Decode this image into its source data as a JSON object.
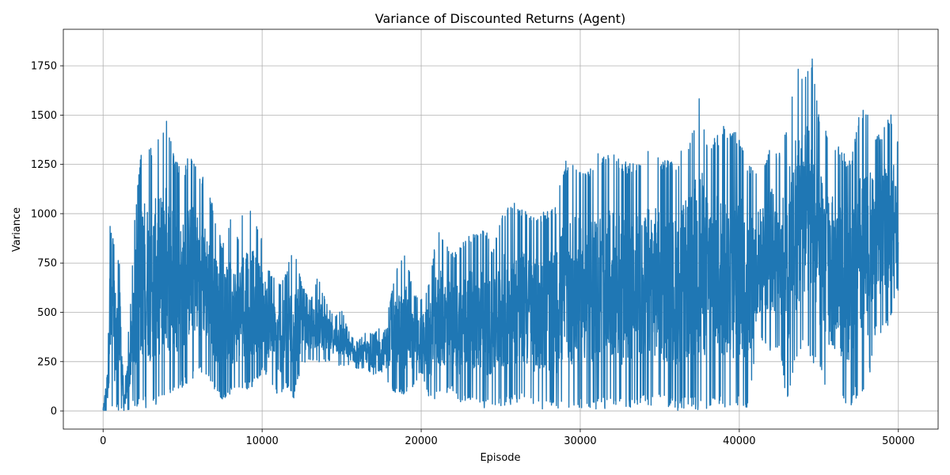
{
  "chart_data": {
    "type": "line",
    "title": "Variance of Discounted Returns (Agent)",
    "xlabel": "Episode",
    "ylabel": "Variance",
    "xlim": [
      -2500,
      52500
    ],
    "ylim": [
      -92,
      1935
    ],
    "xticks": [
      0,
      10000,
      20000,
      30000,
      40000,
      50000
    ],
    "yticks": [
      0,
      250,
      500,
      750,
      1000,
      1250,
      1500,
      1750
    ],
    "grid": true,
    "legend": "none",
    "series": [
      {
        "color": "#1f77b4",
        "envelope_x": [
          0,
          300,
          400,
          900,
          1100,
          1300,
          1800,
          2000,
          2500,
          3000,
          3500,
          4000,
          4500,
          5000,
          5500,
          6000,
          6500,
          7000,
          7500,
          8000,
          8500,
          9000,
          9500,
          10000,
          10500,
          11000,
          11500,
          12000,
          12500,
          13000,
          13500,
          14000,
          14500,
          15000,
          15500,
          16000,
          16500,
          17000,
          17500,
          18000,
          18500,
          19000,
          19500,
          20000,
          20500,
          21000,
          21500,
          22000,
          22500,
          23000,
          23500,
          24000,
          24500,
          25000,
          25500,
          26000,
          26500,
          27000,
          27500,
          28000,
          28500,
          29000,
          29500,
          30000,
          30500,
          31000,
          31500,
          32000,
          32500,
          33000,
          33500,
          34000,
          34500,
          35000,
          35500,
          36000,
          36500,
          37000,
          37500,
          38000,
          38500,
          39000,
          39500,
          40000,
          40500,
          41000,
          41500,
          42000,
          42500,
          43000,
          43500,
          44000,
          44500,
          45000,
          45500,
          46000,
          46500,
          47000,
          47500,
          48000,
          48500,
          49000,
          49500,
          50000
        ],
        "envelope_high": [
          10,
          300,
          980,
          760,
          790,
          40,
          660,
          1020,
          1390,
          1340,
          1400,
          1480,
          1290,
          1200,
          1330,
          1230,
          1160,
          1010,
          840,
          980,
          880,
          1100,
          1000,
          880,
          700,
          650,
          700,
          860,
          640,
          560,
          680,
          560,
          480,
          520,
          390,
          350,
          400,
          390,
          440,
          550,
          730,
          830,
          600,
          570,
          650,
          920,
          860,
          800,
          860,
          890,
          900,
          950,
          800,
          1000,
          1060,
          1050,
          1020,
          980,
          1000,
          1020,
          1050,
          1270,
          1260,
          1250,
          1220,
          1320,
          1290,
          1300,
          1290,
          1260,
          1260,
          1280,
          1360,
          1280,
          1280,
          1270,
          1350,
          1420,
          1640,
          1380,
          1390,
          1450,
          1420,
          1420,
          1260,
          1230,
          1250,
          1370,
          1300,
          1460,
          1770,
          1720,
          1840,
          1520,
          1410,
          1370,
          1310,
          1280,
          1510,
          1580,
          1390,
          1420,
          1520,
          1360
        ],
        "envelope_low": [
          0,
          0,
          0,
          0,
          0,
          0,
          10,
          20,
          20,
          10,
          30,
          40,
          80,
          120,
          150,
          200,
          180,
          100,
          60,
          80,
          100,
          110,
          120,
          200,
          150,
          70,
          120,
          60,
          240,
          250,
          240,
          250,
          250,
          220,
          230,
          210,
          210,
          180,
          200,
          120,
          80,
          80,
          120,
          200,
          60,
          60,
          80,
          100,
          30,
          60,
          50,
          10,
          30,
          20,
          30,
          40,
          60,
          30,
          10,
          10,
          0,
          0,
          10,
          10,
          10,
          0,
          10,
          20,
          0,
          10,
          20,
          20,
          30,
          30,
          20,
          0,
          10,
          0,
          0,
          10,
          20,
          10,
          10,
          10,
          10,
          250,
          350,
          300,
          320,
          30,
          200,
          330,
          250,
          200,
          100,
          40,
          50,
          20,
          80,
          60,
          380,
          400,
          450,
          620
        ]
      }
    ]
  }
}
